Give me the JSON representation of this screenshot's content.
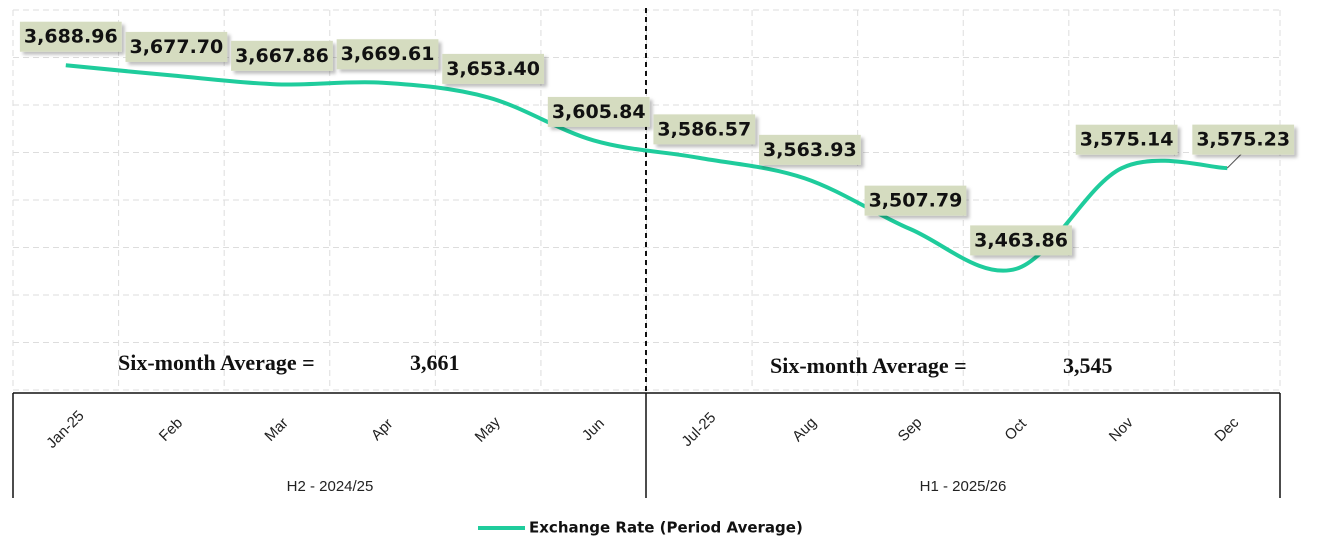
{
  "chart_data": {
    "type": "line",
    "categories": [
      "Jan-25",
      "Feb",
      "Mar",
      "Apr",
      "May",
      "Jun",
      "Jul-25",
      "Aug",
      "Sep",
      "Oct",
      "Nov",
      "Dec"
    ],
    "groups": [
      "H2 - 2024/25",
      "H1 - 2025/26"
    ],
    "series": [
      {
        "name": "Exchange Rate (Period Average)",
        "color": "#1fcc9c",
        "values": [
          3688.96,
          3677.7,
          3667.86,
          3669.61,
          3653.4,
          3605.84,
          3586.57,
          3563.93,
          3507.79,
          3463.86,
          3575.14,
          3575.23
        ],
        "value_labels": [
          "3,688.96",
          "3,677.70",
          "3,667.86",
          "3,669.61",
          "3,653.40",
          "3,605.84",
          "3,586.57",
          "3,563.93",
          "3,507.79",
          "3,463.86",
          "3,575.14",
          "3,575.23"
        ]
      }
    ],
    "annotations": [
      {
        "text": "Six-month Average =",
        "value": "3,661"
      },
      {
        "text": "Six-month Average =",
        "value": "3,545"
      }
    ],
    "ylim": [
      3330,
      3750
    ],
    "grid": true,
    "legend": "bottom"
  }
}
